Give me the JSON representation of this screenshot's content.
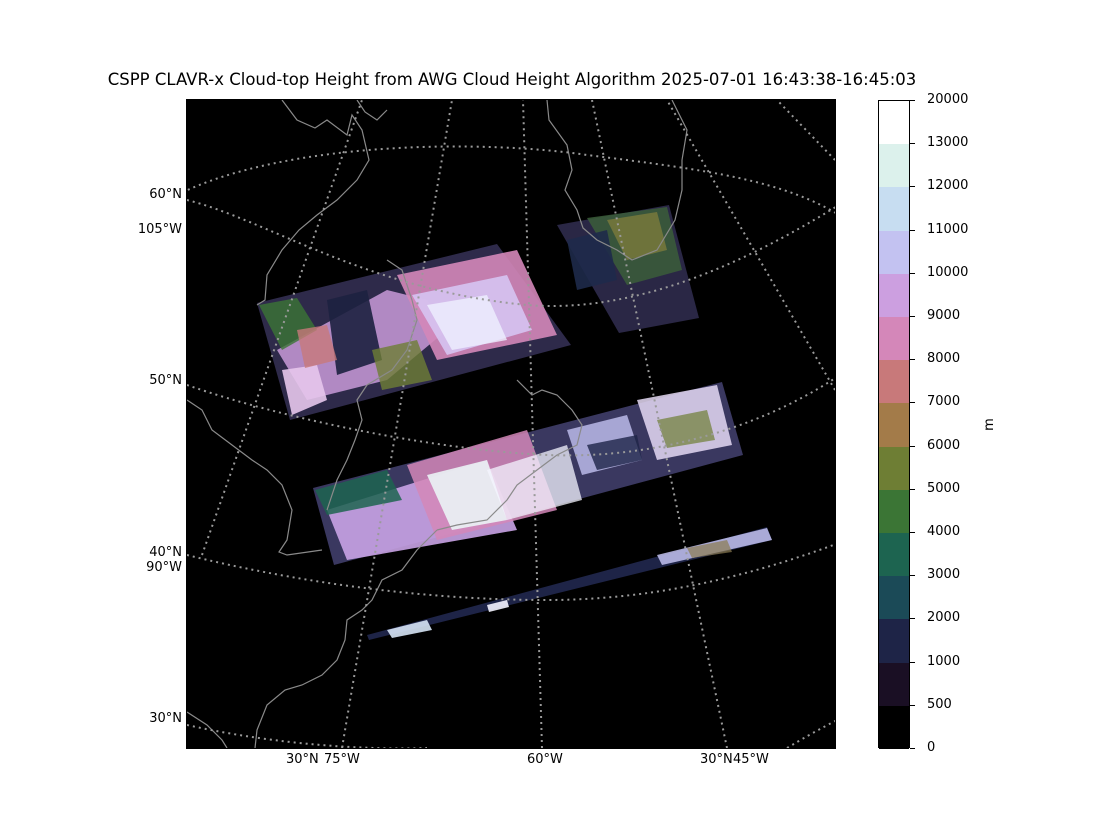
{
  "title": "CSPP CLAVR-x Cloud-top Height from AWG Cloud Height Algorithm 2025-07-01 16:43:38-16:45:03",
  "lat_labels": [
    "60°N",
    "105°W",
    "50°N",
    "40°N",
    "90°W",
    "30°N"
  ],
  "lon_labels": [
    "30°N",
    "75°W",
    "60°W",
    "30°N",
    "45°W"
  ],
  "colorbar": {
    "unit": "m",
    "ticks": [
      "20000",
      "13000",
      "12000",
      "11000",
      "10000",
      "9000",
      "8000",
      "7000",
      "6000",
      "5000",
      "4000",
      "3000",
      "2000",
      "1000",
      "500",
      "0"
    ],
    "colors": [
      "#ffffff",
      "#dcf1ec",
      "#c7ddf1",
      "#c3c2f1",
      "#cc9fe0",
      "#d487b9",
      "#c8797a",
      "#a37b49",
      "#6e7e34",
      "#3b7535",
      "#1d6450",
      "#1b4a57",
      "#1e2447",
      "#1a0f24",
      "#000000"
    ]
  },
  "map_style": {
    "background": "#000000",
    "coast_color": "#8a8a8a",
    "grid_color": "#9a9a9a"
  }
}
